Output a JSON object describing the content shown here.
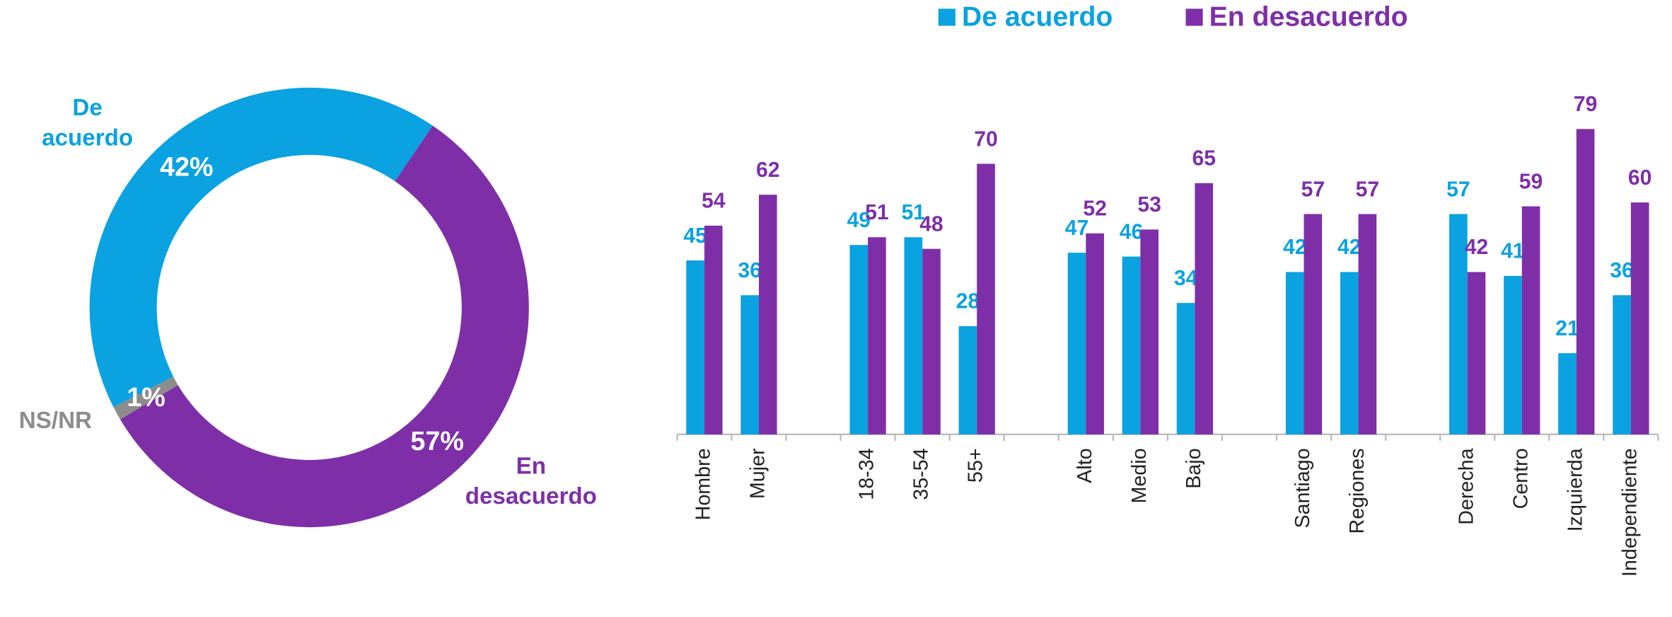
{
  "chart_data": [
    {
      "type": "donut",
      "categories": [
        "De acuerdo",
        "En desacuerdo",
        "NS/NR"
      ],
      "values": [
        42,
        57,
        1
      ],
      "value_labels": [
        "42%",
        "57%",
        "1%"
      ],
      "colors": [
        "#0aa2e0",
        "#7e2fa8",
        "#8c8c8c"
      ]
    },
    {
      "type": "bar",
      "categories": [
        "Hombre",
        "Mujer",
        null,
        "18-34",
        "35-54",
        "55+",
        null,
        "Alto",
        "Medio",
        "Bajo",
        null,
        "Santiago",
        "Regiones",
        null,
        "Derecha",
        "Centro",
        "Izquierda",
        "Independiente"
      ],
      "series": [
        {
          "name": "De acuerdo",
          "color": "#0aa2e0",
          "values": [
            45,
            36,
            null,
            49,
            51,
            28,
            null,
            47,
            46,
            34,
            null,
            42,
            42,
            null,
            57,
            41,
            21,
            36
          ]
        },
        {
          "name": "En desacuerdo",
          "color": "#7e2fa8",
          "values": [
            54,
            62,
            null,
            51,
            48,
            70,
            null,
            52,
            53,
            65,
            null,
            57,
            57,
            null,
            42,
            59,
            79,
            60
          ]
        }
      ],
      "ylim": [
        0,
        85
      ],
      "legend": "top"
    }
  ]
}
